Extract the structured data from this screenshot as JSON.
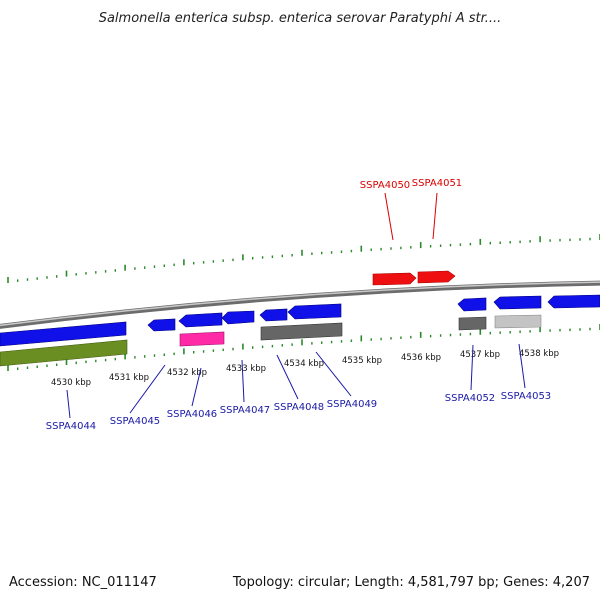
{
  "title": "Salmonella enterica subsp. enterica serovar Paratyphi A str....",
  "footer": {
    "accession": "Accession: NC_011147",
    "summary": "Topology: circular; Length: 4,581,797 bp; Genes: 4,207"
  },
  "colors": {
    "backbone": "#8a8a8a",
    "tick": "#2a8a2a",
    "label_red": "#dd0000",
    "label_blue": "#1a1aa8",
    "gene_blue": "#1010e8",
    "gene_red": "#ee1010",
    "gene_green": "#6b8e23",
    "gene_pink": "#ff2aa6",
    "gene_darkgray": "#666666",
    "gene_lightgray": "#c4c4c4"
  },
  "scale_labels": [
    "4530 kbp",
    "4531 kbp",
    "4532 kbp",
    "4533 kbp",
    "4534 kbp",
    "4535 kbp",
    "4536 kbp",
    "4537 kbp",
    "4538 kbp"
  ],
  "gene_labels": [
    {
      "id": "SSPA4044",
      "color": "blue"
    },
    {
      "id": "SSPA4045",
      "color": "blue"
    },
    {
      "id": "SSPA4046",
      "color": "blue"
    },
    {
      "id": "SSPA4047",
      "color": "blue"
    },
    {
      "id": "SSPA4048",
      "color": "blue"
    },
    {
      "id": "SSPA4049",
      "color": "blue"
    },
    {
      "id": "SSPA4050",
      "color": "red"
    },
    {
      "id": "SSPA4051",
      "color": "red"
    },
    {
      "id": "SSPA4052",
      "color": "blue"
    },
    {
      "id": "SSPA4053",
      "color": "blue"
    }
  ]
}
